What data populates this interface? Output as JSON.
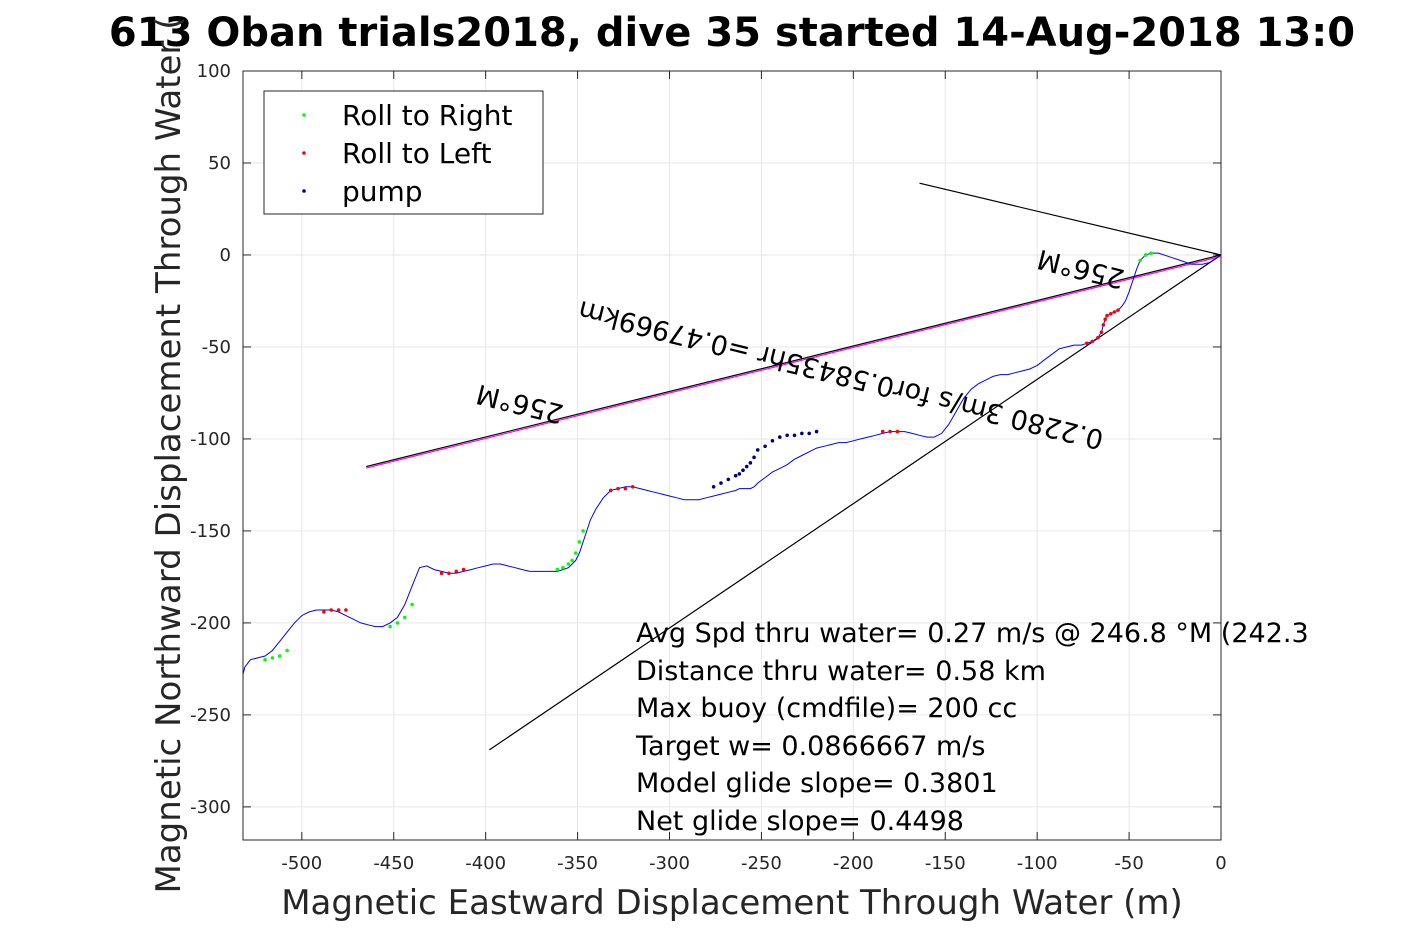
{
  "chart_data": {
    "type": "line",
    "title": "613 Oban trials2018, dive 35 started 14-Aug-2018 13:0",
    "xlabel": "Magnetic Eastward Displacement Through Water (m)",
    "ylabel": "Magnetic Northward Displacement Through Water (",
    "xlim": [
      -532,
      0
    ],
    "ylim": [
      -318,
      100
    ],
    "xticks": [
      -500,
      -450,
      -400,
      -350,
      -300,
      -250,
      -200,
      -150,
      -100,
      -50,
      0
    ],
    "yticks": [
      100,
      50,
      0,
      -50,
      -100,
      -150,
      -200,
      -250,
      -300
    ],
    "grid": true,
    "legend": {
      "placement": "top-left",
      "entries": [
        {
          "label": "Roll to Right",
          "color": "#00ff00"
        },
        {
          "label": "Roll to Left",
          "color": "#ff0000"
        },
        {
          "label": "pump",
          "color": "#000080"
        }
      ]
    },
    "track": {
      "color": "#0000ff",
      "x": [
        0,
        -3,
        -6,
        -10,
        -16,
        -22,
        -28,
        -34,
        -38,
        -41,
        -44,
        -46,
        -48,
        -50,
        -52,
        -54,
        -56,
        -58,
        -60,
        -62,
        -63,
        -64,
        -65,
        -67,
        -70,
        -73,
        -76,
        -78,
        -80,
        -84,
        -88,
        -92,
        -96,
        -100,
        -104,
        -108,
        -112,
        -116,
        -120,
        -124,
        -128,
        -132,
        -136,
        -140,
        -144,
        -148,
        -152,
        -156,
        -160,
        -164,
        -168,
        -172,
        -176,
        -180,
        -184,
        -188,
        -192,
        -196,
        -200,
        -204,
        -208,
        -212,
        -216,
        -220,
        -224,
        -228,
        -232,
        -236,
        -240,
        -244,
        -248,
        -252,
        -254,
        -256,
        -258,
        -260,
        -262,
        -264,
        -268,
        -272,
        -276,
        -280,
        -284,
        -288,
        -292,
        -296,
        -300,
        -304,
        -308,
        -312,
        -316,
        -320,
        -324,
        -328,
        -332,
        -336,
        -340,
        -343,
        -345,
        -347,
        -349,
        -351,
        -353,
        -355,
        -358,
        -361,
        -364,
        -368,
        -372,
        -376,
        -380,
        -384,
        -388,
        -392,
        -396,
        -400,
        -404,
        -408,
        -412,
        -416,
        -420,
        -424,
        -428,
        -432,
        -436,
        -440,
        -444,
        -448,
        -452,
        -456,
        -460,
        -464,
        -468,
        -472,
        -476,
        -480,
        -484,
        -488,
        -492,
        -496,
        -500,
        -504,
        -508,
        -512,
        -516,
        -520,
        -524,
        -528,
        -531,
        -532
      ],
      "y": [
        0,
        -2,
        -4,
        -5,
        -5,
        -3,
        -1,
        1,
        1,
        0,
        -3,
        -8,
        -14,
        -20,
        -25,
        -28,
        -30,
        -31,
        -32,
        -33,
        -35,
        -38,
        -42,
        -45,
        -47,
        -48,
        -49,
        -49,
        -49,
        -50,
        -51,
        -54,
        -57,
        -60,
        -62,
        -63,
        -64,
        -65,
        -65,
        -66,
        -68,
        -70,
        -73,
        -78,
        -85,
        -92,
        -97,
        -99,
        -99,
        -98,
        -97,
        -96,
        -96,
        -96,
        -97,
        -98,
        -99,
        -100,
        -101,
        -102,
        -102,
        -103,
        -104,
        -105,
        -107,
        -109,
        -111,
        -114,
        -116,
        -118,
        -121,
        -124,
        -126,
        -127,
        -127,
        -127,
        -127,
        -128,
        -129,
        -130,
        -131,
        -132,
        -133,
        -133,
        -133,
        -132,
        -131,
        -130,
        -129,
        -128,
        -127,
        -126,
        -126,
        -127,
        -128,
        -132,
        -138,
        -144,
        -150,
        -156,
        -162,
        -166,
        -168,
        -170,
        -171,
        -172,
        -172,
        -172,
        -172,
        -172,
        -171,
        -170,
        -169,
        -168,
        -168,
        -169,
        -170,
        -171,
        -172,
        -173,
        -173,
        -172,
        -171,
        -169,
        -170,
        -180,
        -190,
        -197,
        -200,
        -202,
        -202,
        -201,
        -200,
        -198,
        -196,
        -194,
        -193,
        -193,
        -193,
        -194,
        -196,
        -200,
        -205,
        -210,
        -215,
        -218,
        -219,
        -220,
        -224,
        -228
      ]
    },
    "markers": {
      "roll_right_x": [
        -38,
        -41,
        -44,
        -347,
        -349,
        -351,
        -353,
        -355,
        -358,
        -361,
        -440,
        -444,
        -448,
        -452,
        -508,
        -512,
        -516,
        -520
      ],
      "roll_right_y": [
        1,
        0,
        -3,
        -150,
        -156,
        -162,
        -166,
        -168,
        -170,
        -171,
        -190,
        -197,
        -200,
        -202,
        -215,
        -218,
        -219,
        -220
      ],
      "roll_left_x": [
        -56,
        -58,
        -60,
        -62,
        -63,
        -64,
        -65,
        -67,
        -70,
        -73,
        -176,
        -180,
        -184,
        -320,
        -324,
        -328,
        -332,
        -412,
        -416,
        -420,
        -424,
        -476,
        -480,
        -484,
        -488
      ],
      "roll_left_y": [
        -30,
        -31,
        -32,
        -33,
        -35,
        -38,
        -42,
        -45,
        -47,
        -48,
        -96,
        -96,
        -96,
        -126,
        -127,
        -127,
        -128,
        -171,
        -172,
        -173,
        -173,
        -193,
        -193,
        -193,
        -194
      ],
      "pump_x": [
        -220,
        -224,
        -228,
        -232,
        -236,
        -240,
        -244,
        -248,
        -252,
        -254,
        -256,
        -258,
        -260,
        -262,
        -264,
        -268,
        -272,
        -276
      ],
      "pump_y": [
        -96,
        -97,
        -97,
        -98,
        -98,
        -99,
        -101,
        -104,
        -106,
        -110,
        -113,
        -115,
        -117,
        -119,
        -120,
        -122,
        -124,
        -126
      ]
    },
    "reference_lines": [
      {
        "x": [
          0,
          -164
        ],
        "y": [
          0,
          39
        ]
      },
      {
        "x": [
          0,
          -398
        ],
        "y": [
          0,
          -269
        ]
      }
    ],
    "heading_line": {
      "x": [
        0,
        -465
      ],
      "y": [
        0,
        -115
      ],
      "color": "#ff00ff"
    },
    "heading_annotations": [
      "256°M",
      "0.2280 3m/s for0.58435hr =0.47969km",
      "256°M"
    ],
    "stats": [
      "Avg Spd thru water=  0.27 m/s @ 246.8 °M (242.3",
      "Distance thru water=  0.58 km",
      "Max buoy (cmdfile)= 200 cc",
      "Target w= 0.0866667 m/s",
      "Model glide slope= 0.3801",
      "Net glide slope= 0.4498"
    ]
  }
}
